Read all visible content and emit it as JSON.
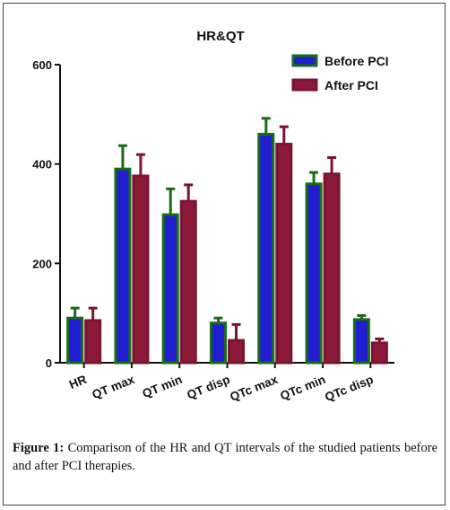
{
  "chart_data": {
    "type": "bar",
    "title": "HR&QT",
    "xlabel": "",
    "ylabel": "",
    "ylim": [
      0,
      600
    ],
    "yticks": [
      0,
      200,
      400,
      600
    ],
    "categories": [
      "HR",
      "QT max",
      "QT min",
      "QT disp",
      "QTc max",
      "QTc min",
      "QTc disp"
    ],
    "series": [
      {
        "name": "Before PCI",
        "values": [
          90,
          390,
          298,
          80,
          460,
          360,
          87
        ],
        "errors": [
          20,
          47,
          52,
          10,
          32,
          23,
          8
        ],
        "fill": "#1f1fd1",
        "border": "#1a6b1a"
      },
      {
        "name": "After PCI",
        "values": [
          85,
          376,
          325,
          45,
          440,
          380,
          40
        ],
        "errors": [
          25,
          43,
          33,
          32,
          35,
          33,
          8
        ],
        "fill": "#8b1a3a",
        "border": "#7a1530"
      }
    ],
    "legend_position": "top-right",
    "grid": false
  },
  "caption": {
    "figure_label": "Figure 1:",
    "text": " Comparison of the HR and QT intervals of the studied patients before and after PCI therapies."
  }
}
